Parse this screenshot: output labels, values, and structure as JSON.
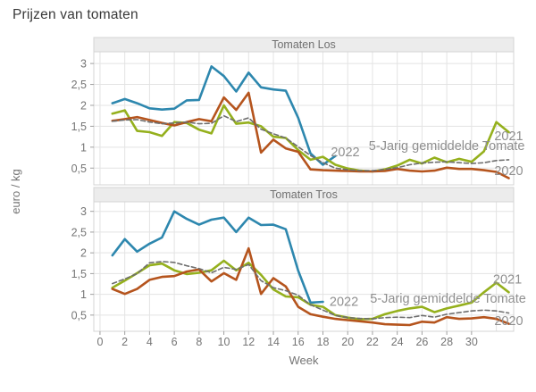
{
  "title": "Prijzen van tomaten",
  "axes": {
    "x_label": "Week",
    "y_label": "euro / kg",
    "xlim": [
      -0.5,
      33.4
    ],
    "x_grid": [
      0,
      2,
      4,
      6,
      8,
      10,
      12,
      14,
      16,
      18,
      20,
      22,
      24,
      26,
      28,
      30,
      32
    ],
    "x_tick_values": [
      0,
      2,
      4,
      6,
      8,
      10,
      12,
      14,
      16,
      18,
      20,
      22,
      24,
      26,
      28,
      30
    ],
    "x_tick_labels": [
      "0",
      "2",
      "4",
      "6",
      "8",
      "10",
      "12",
      "14",
      "16",
      "18",
      "20",
      "22",
      "24",
      "26",
      "28",
      "30"
    ],
    "y_tick_values": [
      0.5,
      1,
      1.5,
      2,
      2.5,
      3
    ],
    "y_tick_labels": [
      "0,5",
      "1",
      "1,5",
      "2",
      "2,5",
      "3"
    ]
  },
  "colors": {
    "s2022": "#2d87ae",
    "s2021": "#95b01d",
    "s2020": "#b5541d",
    "avg": "#6e6e6e",
    "grid": "#e3e3e3",
    "panel_bg": "#ffffff",
    "panel_border": "#d4d4d4",
    "strip_bg": "#ececec",
    "strip_text": "#707070",
    "axis_text": "#757575",
    "axis_line": "#a0a0a0",
    "annotation_text": "#8f8f8f",
    "title_text": "#383838"
  },
  "chart_data": [
    {
      "type": "line",
      "title": "Tomaten Los",
      "xlabel": "Week",
      "ylabel": "euro / kg",
      "ylim": [
        0.1,
        3.28
      ],
      "grid": true,
      "legend": "inline-annotations",
      "series": [
        {
          "name": "2022",
          "color": "#2d87ae",
          "dash": false,
          "width": 2.6,
          "start_week": 1,
          "values": [
            2.05,
            2.15,
            2.05,
            1.93,
            1.9,
            1.92,
            2.12,
            2.13,
            2.93,
            2.7,
            2.33,
            2.78,
            2.43,
            2.38,
            2.35,
            1.7,
            0.85,
            0.58,
            0.79
          ]
        },
        {
          "name": "2021",
          "color": "#95b01d",
          "dash": false,
          "width": 2.6,
          "start_week": 1,
          "values": [
            1.8,
            1.88,
            1.39,
            1.36,
            1.27,
            1.6,
            1.58,
            1.42,
            1.33,
            2.0,
            1.56,
            1.59,
            1.5,
            1.25,
            1.22,
            0.93,
            0.7,
            0.77,
            0.58,
            0.49,
            0.44,
            0.42,
            0.47,
            0.56,
            0.7,
            0.61,
            0.75,
            0.64,
            0.72,
            0.65,
            0.9,
            1.6,
            1.36
          ]
        },
        {
          "name": "2020",
          "color": "#b5541d",
          "dash": false,
          "width": 2.6,
          "start_week": 1,
          "values": [
            1.63,
            1.67,
            1.72,
            1.65,
            1.58,
            1.52,
            1.6,
            1.67,
            1.62,
            2.19,
            1.89,
            2.3,
            0.87,
            1.18,
            0.97,
            0.89,
            0.47,
            0.45,
            0.44,
            0.43,
            0.42,
            0.42,
            0.43,
            0.48,
            0.44,
            0.42,
            0.44,
            0.51,
            0.48,
            0.48,
            0.45,
            0.41,
            0.26
          ]
        },
        {
          "name": "5-Jarig gemiddelde Tomate",
          "color": "#6e6e6e",
          "dash": true,
          "width": 1.6,
          "start_week": 1,
          "values": [
            1.62,
            1.65,
            1.66,
            1.6,
            1.56,
            1.58,
            1.6,
            1.56,
            1.57,
            1.75,
            1.61,
            1.7,
            1.43,
            1.32,
            1.22,
            1.01,
            0.8,
            0.63,
            0.5,
            0.46,
            0.44,
            0.44,
            0.47,
            0.51,
            0.58,
            0.62,
            0.64,
            0.65,
            0.63,
            0.61,
            0.63,
            0.68,
            0.7
          ]
        }
      ],
      "annotations": [
        {
          "text": "2022",
          "x": 19.8,
          "y": 0.89
        },
        {
          "text": "5-Jarig gemiddelde Tomate",
          "x": 28.0,
          "y": 1.04
        },
        {
          "text": "2021",
          "x": 33.0,
          "y": 1.27
        },
        {
          "text": "2020",
          "x": 33.0,
          "y": 0.44
        }
      ]
    },
    {
      "type": "line",
      "title": "Tomaten Tros",
      "xlabel": "Week",
      "ylabel": "euro / kg",
      "ylim": [
        0.11,
        3.23
      ],
      "grid": true,
      "legend": "inline-annotations",
      "series": [
        {
          "name": "2022",
          "color": "#2d87ae",
          "dash": false,
          "width": 2.6,
          "start_week": 1,
          "values": [
            1.94,
            2.33,
            2.03,
            2.22,
            2.37,
            3.0,
            2.82,
            2.68,
            2.8,
            2.85,
            2.5,
            2.85,
            2.67,
            2.68,
            2.57,
            1.57,
            0.8,
            0.82
          ]
        },
        {
          "name": "2021",
          "color": "#95b01d",
          "dash": false,
          "width": 2.6,
          "start_week": 1,
          "values": [
            1.16,
            1.33,
            1.51,
            1.7,
            1.74,
            1.58,
            1.49,
            1.52,
            1.58,
            1.81,
            1.58,
            1.76,
            1.47,
            1.12,
            0.95,
            0.93,
            0.75,
            0.7,
            0.5,
            0.44,
            0.4,
            0.41,
            0.52,
            0.6,
            0.66,
            0.7,
            0.57,
            0.66,
            0.73,
            0.8,
            1.05,
            1.28,
            1.05
          ]
        },
        {
          "name": "2020",
          "color": "#b5541d",
          "dash": false,
          "width": 2.6,
          "start_week": 1,
          "values": [
            1.13,
            1.01,
            1.13,
            1.35,
            1.42,
            1.44,
            1.55,
            1.6,
            1.31,
            1.51,
            1.35,
            2.11,
            1.01,
            1.39,
            1.19,
            0.7,
            0.52,
            0.46,
            0.41,
            0.38,
            0.35,
            0.32,
            0.28,
            0.27,
            0.26,
            0.34,
            0.32,
            0.45,
            0.41,
            0.42,
            0.45,
            0.41,
            0.29
          ]
        },
        {
          "name": "5-Jarig gemiddelde Tomate",
          "color": "#6e6e6e",
          "dash": true,
          "width": 1.6,
          "start_week": 1,
          "values": [
            1.26,
            1.37,
            1.5,
            1.76,
            1.79,
            1.77,
            1.69,
            1.62,
            1.52,
            1.65,
            1.6,
            1.72,
            1.33,
            1.16,
            1.09,
            0.98,
            0.75,
            0.62,
            0.49,
            0.44,
            0.42,
            0.41,
            0.44,
            0.45,
            0.44,
            0.49,
            0.45,
            0.52,
            0.56,
            0.6,
            0.62,
            0.6,
            0.55
          ]
        }
      ],
      "annotations": [
        {
          "text": "2022",
          "x": 19.7,
          "y": 0.83
        },
        {
          "text": "5-Jarig gemiddelde Tomate",
          "x": 28.1,
          "y": 0.91
        },
        {
          "text": "2021",
          "x": 32.9,
          "y": 1.37
        },
        {
          "text": "2020",
          "x": 33.0,
          "y": 0.37
        }
      ]
    }
  ]
}
